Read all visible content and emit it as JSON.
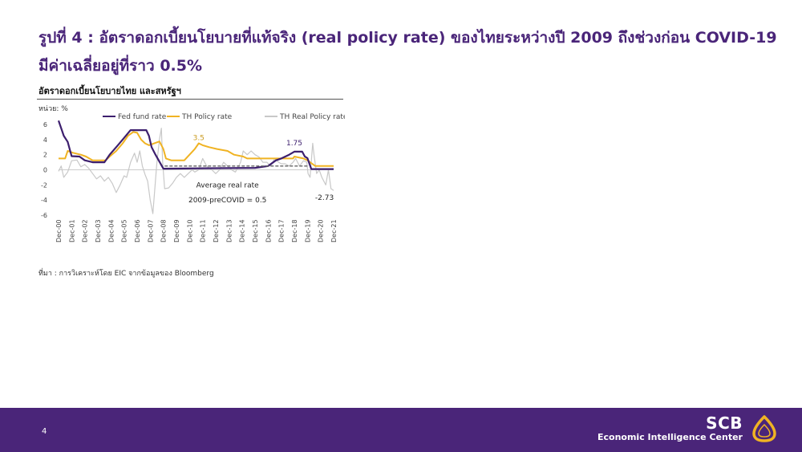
{
  "title_line1": "รูปที่ 4 : อัตราดอกเบี้ยนโยบายที่แท้จริง (real policy rate) ของไทยระหว่างปี 2009 ถึงช่วงก่อน COVID-19",
  "title_line2": "มีค่าเฉลี่ยอยู่ที่ราว 0.5%",
  "chart_heading": "อัตราดอกเบี้ยนโยบายไทย และสหรัฐฯ",
  "unit": "หน่วย: %",
  "source": "ที่มา : การวิเคราะห์โดย EIC จากข้อมูลของ Bloomberg",
  "page_number": "4",
  "brand": {
    "name": "SCB",
    "subtitle": "Economic Intelligence Center"
  },
  "colors": {
    "fed": "#3d1f6e",
    "th_policy": "#f0b323",
    "th_real": "#c8c8c8",
    "brand_purple": "#4a2579",
    "logo_gold": "#f0b323"
  },
  "chart_data": {
    "type": "line",
    "ylim": [
      -6,
      6
    ],
    "yticks": [
      -6,
      -4,
      -2,
      0,
      2,
      4,
      6
    ],
    "x_range": [
      2000.9,
      2021.9
    ],
    "x_ticks": [
      "Dec-00",
      "Dec-01",
      "Dec-02",
      "Dec-03",
      "Dec-04",
      "Dec-05",
      "Dec-06",
      "Dec-07",
      "Dec-08",
      "Dec-09",
      "Dec-10",
      "Dec-11",
      "Dec-12",
      "Dec-13",
      "Dec-14",
      "Dec-15",
      "Dec-16",
      "Dec-17",
      "Dec-18",
      "Dec-19",
      "Dec-20",
      "Dec-21"
    ],
    "legend": [
      "Fed fund rate",
      "TH Policy rate",
      "TH Real Policy rate"
    ],
    "legend_position": "top",
    "annotations": {
      "th_peak_2011": "3.5",
      "th_2018": "1.75",
      "real_latest": "-2.73",
      "avg_line1": "Average real rate",
      "avg_line2": "2009-preCOVID = 0.5"
    },
    "average_real_rate": {
      "value": 0.5,
      "from": 2009.0,
      "to": 2020.0
    },
    "series": [
      {
        "name": "Fed fund rate",
        "points": [
          [
            2000.9,
            6.5
          ],
          [
            2001.1,
            5.5
          ],
          [
            2001.3,
            4.5
          ],
          [
            2001.6,
            3.7
          ],
          [
            2001.9,
            1.8
          ],
          [
            2002.5,
            1.75
          ],
          [
            2002.9,
            1.25
          ],
          [
            2003.5,
            1.0
          ],
          [
            2004.4,
            1.0
          ],
          [
            2004.8,
            2.0
          ],
          [
            2005.3,
            3.0
          ],
          [
            2005.8,
            4.0
          ],
          [
            2006.4,
            5.25
          ],
          [
            2007.6,
            5.25
          ],
          [
            2007.8,
            4.5
          ],
          [
            2008.0,
            3.0
          ],
          [
            2008.3,
            2.0
          ],
          [
            2008.9,
            0.15
          ],
          [
            2015.9,
            0.25
          ],
          [
            2016.9,
            0.5
          ],
          [
            2017.5,
            1.25
          ],
          [
            2017.9,
            1.5
          ],
          [
            2018.5,
            2.0
          ],
          [
            2018.9,
            2.4
          ],
          [
            2019.5,
            2.4
          ],
          [
            2019.7,
            1.75
          ],
          [
            2019.9,
            1.55
          ],
          [
            2020.2,
            0.1
          ],
          [
            2021.9,
            0.1
          ]
        ]
      },
      {
        "name": "TH Policy rate",
        "points": [
          [
            2000.9,
            1.5
          ],
          [
            2001.4,
            1.5
          ],
          [
            2001.6,
            2.5
          ],
          [
            2002.0,
            2.25
          ],
          [
            2002.6,
            2.0
          ],
          [
            2003.0,
            1.75
          ],
          [
            2003.5,
            1.25
          ],
          [
            2004.5,
            1.25
          ],
          [
            2004.8,
            1.75
          ],
          [
            2005.3,
            2.5
          ],
          [
            2005.8,
            3.5
          ],
          [
            2006.2,
            4.5
          ],
          [
            2006.6,
            5.0
          ],
          [
            2006.9,
            4.9
          ],
          [
            2007.2,
            4.0
          ],
          [
            2007.5,
            3.5
          ],
          [
            2007.8,
            3.25
          ],
          [
            2008.6,
            3.75
          ],
          [
            2008.9,
            2.75
          ],
          [
            2009.1,
            1.5
          ],
          [
            2009.5,
            1.25
          ],
          [
            2010.5,
            1.25
          ],
          [
            2010.9,
            2.0
          ],
          [
            2011.3,
            2.75
          ],
          [
            2011.6,
            3.5
          ],
          [
            2011.9,
            3.25
          ],
          [
            2012.4,
            3.0
          ],
          [
            2013.0,
            2.75
          ],
          [
            2013.8,
            2.5
          ],
          [
            2014.3,
            2.0
          ],
          [
            2015.0,
            1.75
          ],
          [
            2015.3,
            1.5
          ],
          [
            2018.8,
            1.5
          ],
          [
            2018.9,
            1.75
          ],
          [
            2019.6,
            1.5
          ],
          [
            2019.9,
            1.25
          ],
          [
            2020.1,
            1.0
          ],
          [
            2020.3,
            0.75
          ],
          [
            2020.5,
            0.5
          ],
          [
            2021.9,
            0.5
          ]
        ]
      },
      {
        "name": "TH Real Policy rate",
        "points": [
          [
            2000.9,
            -0.2
          ],
          [
            2001.1,
            0.5
          ],
          [
            2001.3,
            -1.0
          ],
          [
            2001.6,
            -0.3
          ],
          [
            2001.9,
            1.2
          ],
          [
            2002.3,
            1.3
          ],
          [
            2002.6,
            0.4
          ],
          [
            2002.9,
            0.7
          ],
          [
            2003.2,
            0.2
          ],
          [
            2003.5,
            -0.5
          ],
          [
            2003.8,
            -1.2
          ],
          [
            2004.1,
            -0.8
          ],
          [
            2004.4,
            -1.5
          ],
          [
            2004.7,
            -1.0
          ],
          [
            2005.0,
            -1.8
          ],
          [
            2005.3,
            -3.0
          ],
          [
            2005.6,
            -2.0
          ],
          [
            2005.9,
            -0.8
          ],
          [
            2006.1,
            -1.0
          ],
          [
            2006.4,
            1.0
          ],
          [
            2006.7,
            2.2
          ],
          [
            2006.9,
            1.0
          ],
          [
            2007.1,
            2.5
          ],
          [
            2007.3,
            0.5
          ],
          [
            2007.5,
            -0.6
          ],
          [
            2007.7,
            -1.5
          ],
          [
            2007.9,
            -4.0
          ],
          [
            2008.1,
            -5.8
          ],
          [
            2008.4,
            0.8
          ],
          [
            2008.6,
            4.0
          ],
          [
            2008.75,
            5.5
          ],
          [
            2008.85,
            1.0
          ],
          [
            2009.0,
            -2.5
          ],
          [
            2009.3,
            -2.4
          ],
          [
            2009.6,
            -1.8
          ],
          [
            2009.9,
            -1.0
          ],
          [
            2010.2,
            -0.5
          ],
          [
            2010.5,
            -1.0
          ],
          [
            2010.8,
            -0.5
          ],
          [
            2011.1,
            0.0
          ],
          [
            2011.3,
            -0.3
          ],
          [
            2011.6,
            0.0
          ],
          [
            2011.9,
            1.5
          ],
          [
            2012.2,
            0.5
          ],
          [
            2012.6,
            0.0
          ],
          [
            2012.9,
            -0.5
          ],
          [
            2013.2,
            0.0
          ],
          [
            2013.5,
            1.0
          ],
          [
            2013.8,
            0.5
          ],
          [
            2014.1,
            0.0
          ],
          [
            2014.4,
            -0.3
          ],
          [
            2014.8,
            1.0
          ],
          [
            2015.0,
            2.5
          ],
          [
            2015.3,
            2.0
          ],
          [
            2015.6,
            2.5
          ],
          [
            2015.9,
            2.0
          ],
          [
            2016.2,
            1.7
          ],
          [
            2016.5,
            1.0
          ],
          [
            2016.8,
            1.0
          ],
          [
            2017.1,
            0.5
          ],
          [
            2017.4,
            1.5
          ],
          [
            2017.7,
            1.0
          ],
          [
            2017.9,
            0.8
          ],
          [
            2018.2,
            0.8
          ],
          [
            2018.5,
            0.5
          ],
          [
            2018.8,
            1.0
          ],
          [
            2019.0,
            1.5
          ],
          [
            2019.3,
            0.5
          ],
          [
            2019.6,
            1.2
          ],
          [
            2019.85,
            1.0
          ],
          [
            2019.95,
            -0.5
          ],
          [
            2020.1,
            -1.0
          ],
          [
            2020.3,
            3.5
          ],
          [
            2020.4,
            2.0
          ],
          [
            2020.6,
            -0.5
          ],
          [
            2020.8,
            0.0
          ],
          [
            2021.0,
            -1.0
          ],
          [
            2021.3,
            -2.0
          ],
          [
            2021.5,
            0.0
          ],
          [
            2021.7,
            -2.5
          ],
          [
            2021.9,
            -2.73
          ]
        ]
      }
    ]
  }
}
